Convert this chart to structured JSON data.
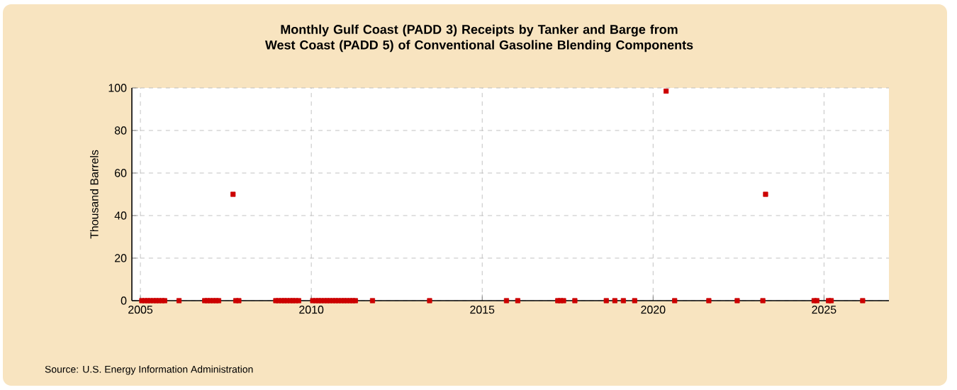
{
  "chart_data": {
    "type": "scatter",
    "title": "Monthly Gulf Coast (PADD 3) Receipts by Tanker and Barge from West Coast (PADD 5) of Conventional Gasoline Blending Components",
    "ylabel": "Thousand Barrels",
    "annotations": [
      "Source: U.S. Energy Information Administration"
    ],
    "xlim": [
      2004.75,
      2026.9
    ],
    "xticks": [
      2005,
      2010,
      2015,
      2020,
      2025
    ],
    "ylim": [
      0,
      100
    ],
    "yticks": [
      0,
      20,
      40,
      60,
      80,
      100
    ],
    "grid": true,
    "marker": "square",
    "series": [
      {
        "color": "#cc0000",
        "x": [
          2005.04,
          2005.13,
          2005.21,
          2005.29,
          2005.38,
          2005.46,
          2005.54,
          2005.63,
          2005.71,
          2006.13,
          2006.88,
          2006.96,
          2007.04,
          2007.13,
          2007.21,
          2007.29,
          2007.71,
          2007.79,
          2007.88,
          2008.96,
          2009.04,
          2009.13,
          2009.21,
          2009.29,
          2009.38,
          2009.46,
          2009.54,
          2009.63,
          2010.04,
          2010.13,
          2010.21,
          2010.29,
          2010.38,
          2010.46,
          2010.54,
          2010.63,
          2010.71,
          2010.79,
          2010.88,
          2010.96,
          2011.04,
          2011.13,
          2011.21,
          2011.29,
          2011.79,
          2013.46,
          2015.71,
          2016.04,
          2017.21,
          2017.29,
          2017.38,
          2017.71,
          2018.63,
          2018.88,
          2019.13,
          2019.46,
          2020.38,
          2020.63,
          2021.63,
          2022.46,
          2023.21,
          2023.29,
          2024.71,
          2024.79,
          2025.13,
          2025.21,
          2026.13
        ],
        "values": [
          0,
          0,
          0,
          0,
          0,
          0,
          0,
          0,
          0,
          0,
          0,
          0,
          0,
          0,
          0,
          0,
          50,
          0,
          0,
          0,
          0,
          0,
          0,
          0,
          0,
          0,
          0,
          0,
          0,
          0,
          0,
          0,
          0,
          0,
          0,
          0,
          0,
          0,
          0,
          0,
          0,
          0,
          0,
          0,
          0,
          0,
          0,
          0,
          0,
          0,
          0,
          0,
          0,
          0,
          0,
          0,
          98.5,
          0,
          0,
          0,
          0,
          50,
          0,
          0,
          0,
          0,
          0
        ]
      }
    ]
  }
}
